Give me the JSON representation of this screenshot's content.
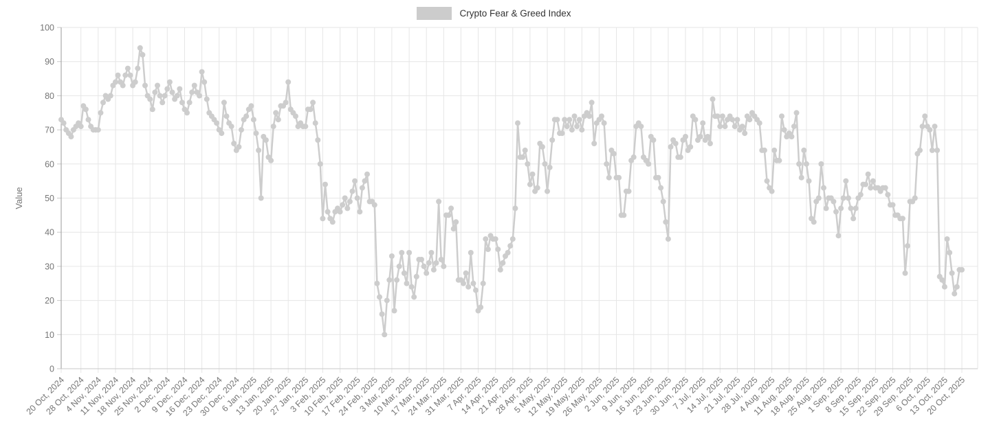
{
  "legend": {
    "label": "Crypto Fear & Greed Index"
  },
  "chart_data": {
    "type": "line",
    "title": "Crypto Fear & Greed Index",
    "xlabel": "",
    "ylabel": "Value",
    "ylim": [
      0,
      100
    ],
    "y_ticks": [
      0,
      10,
      20,
      30,
      40,
      50,
      60,
      70,
      80,
      90,
      100
    ],
    "grid": true,
    "legend_position": "top-center",
    "point_markers": true,
    "x_start_date": "20 Oct, 2024",
    "x_end_date": "20 Oct, 2025",
    "cadence": "daily",
    "x_tick_labels": [
      "20 Oct, 2024",
      "28 Oct, 2024",
      "4 Nov, 2024",
      "11 Nov, 2024",
      "18 Nov, 2024",
      "25 Nov, 2024",
      "2 Dec, 2024",
      "9 Dec, 2024",
      "16 Dec, 2024",
      "23 Dec, 2024",
      "30 Dec, 2024",
      "6 Jan, 2025",
      "13 Jan, 2025",
      "20 Jan, 2025",
      "27 Jan, 2025",
      "3 Feb, 2025",
      "10 Feb, 2025",
      "17 Feb, 2025",
      "24 Feb, 2025",
      "3 Mar, 2025",
      "10 Mar, 2025",
      "17 Mar, 2025",
      "24 Mar, 2025",
      "31 Mar, 2025",
      "7 Apr, 2025",
      "14 Apr, 2025",
      "21 Apr, 2025",
      "28 Apr, 2025",
      "5 May, 2025",
      "12 May, 2025",
      "19 May, 2025",
      "26 May, 2025",
      "2 Jun, 2025",
      "9 Jun, 2025",
      "16 Jun, 2025",
      "23 Jun, 2025",
      "30 Jun, 2025",
      "7 Jul, 2025",
      "14 Jul, 2025",
      "21 Jul, 2025",
      "28 Jul, 2025",
      "4 Aug, 2025",
      "11 Aug, 2025",
      "18 Aug, 2025",
      "25 Aug, 2025",
      "1 Sep, 2025",
      "8 Sep, 2025",
      "15 Sep, 2025",
      "22 Sep, 2025",
      "29 Sep, 2025",
      "6 Oct, 2025",
      "13 Oct, 2025",
      "20 Oct, 2025"
    ],
    "x_tick_indices": [
      0,
      8,
      15,
      22,
      29,
      36,
      43,
      50,
      57,
      64,
      71,
      78,
      85,
      92,
      99,
      106,
      113,
      120,
      127,
      134,
      141,
      148,
      155,
      162,
      169,
      176,
      183,
      190,
      197,
      204,
      211,
      218,
      225,
      232,
      239,
      246,
      253,
      260,
      267,
      274,
      281,
      288,
      295,
      302,
      309,
      316,
      323,
      330,
      337,
      344,
      351,
      358,
      365
    ],
    "series": [
      {
        "name": "Crypto Fear & Greed Index",
        "values": [
          73,
          72,
          70,
          69,
          68,
          70,
          71,
          72,
          71,
          77,
          76,
          73,
          71,
          70,
          70,
          70,
          75,
          78,
          80,
          79,
          80,
          83,
          84,
          86,
          84,
          83,
          86,
          88,
          86,
          83,
          84,
          88,
          94,
          92,
          83,
          80,
          79,
          76,
          81,
          83,
          80,
          78,
          80,
          82,
          84,
          81,
          79,
          80,
          82,
          78,
          76,
          75,
          78,
          81,
          83,
          81,
          80,
          87,
          84,
          79,
          75,
          74,
          73,
          72,
          70,
          69,
          78,
          74,
          72,
          71,
          66,
          64,
          65,
          70,
          73,
          74,
          76,
          77,
          73,
          69,
          64,
          50,
          68,
          67,
          62,
          61,
          71,
          75,
          73,
          77,
          77,
          78,
          84,
          76,
          75,
          74,
          71,
          72,
          71,
          71,
          76,
          76,
          78,
          72,
          67,
          60,
          44,
          54,
          46,
          44,
          43,
          46,
          47,
          46,
          48,
          50,
          47,
          49,
          52,
          55,
          50,
          46,
          53,
          55,
          57,
          49,
          49,
          48,
          25,
          21,
          16,
          10,
          20,
          26,
          33,
          17,
          26,
          30,
          34,
          28,
          25,
          34,
          24,
          21,
          27,
          32,
          32,
          30,
          28,
          31,
          34,
          29,
          31,
          49,
          32,
          30,
          45,
          45,
          47,
          41,
          43,
          26,
          26,
          25,
          28,
          24,
          34,
          25,
          23,
          17,
          18,
          25,
          38,
          35,
          39,
          38,
          38,
          35,
          29,
          31,
          33,
          34,
          36,
          38,
          47,
          72,
          62,
          62,
          64,
          60,
          54,
          57,
          52,
          53,
          66,
          65,
          60,
          52,
          59,
          67,
          73,
          73,
          69,
          69,
          73,
          71,
          73,
          70,
          74,
          71,
          73,
          70,
          74,
          75,
          74,
          78,
          66,
          72,
          73,
          74,
          72,
          60,
          56,
          64,
          63,
          56,
          56,
          45,
          45,
          52,
          52,
          61,
          62,
          71,
          72,
          71,
          62,
          61,
          60,
          68,
          67,
          56,
          56,
          53,
          49,
          43,
          38,
          65,
          67,
          66,
          62,
          62,
          67,
          68,
          64,
          65,
          74,
          73,
          67,
          68,
          72,
          67,
          68,
          66,
          79,
          74,
          74,
          71,
          74,
          71,
          73,
          74,
          73,
          71,
          73,
          70,
          71,
          69,
          74,
          73,
          75,
          74,
          73,
          72,
          64,
          64,
          55,
          53,
          52,
          64,
          61,
          61,
          74,
          70,
          68,
          69,
          68,
          71,
          75,
          60,
          56,
          64,
          60,
          55,
          44,
          43,
          49,
          50,
          60,
          53,
          47,
          50,
          50,
          49,
          46,
          39,
          47,
          50,
          55,
          50,
          47,
          44,
          47,
          50,
          51,
          54,
          54,
          57,
          53,
          55,
          53,
          53,
          52,
          53,
          53,
          51,
          48,
          48,
          45,
          45,
          44,
          44,
          28,
          36,
          49,
          49,
          50,
          63,
          64,
          71,
          74,
          71,
          70,
          64,
          71,
          64,
          27,
          26,
          24,
          38,
          34,
          28,
          22,
          24,
          29,
          29
        ]
      }
    ],
    "colors": {
      "line": "#cdcdcd",
      "legend_swatch": "#cccccc",
      "grid": "#e6e6e6",
      "axis": "#9a9a9a",
      "axis_light": "#c9c9c9",
      "tick_text": "#757575",
      "legend_text": "#333333",
      "background": "#ffffff"
    }
  }
}
